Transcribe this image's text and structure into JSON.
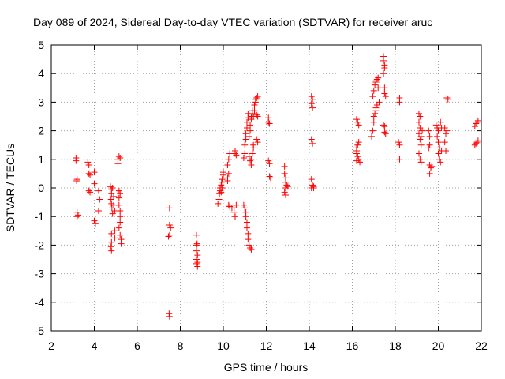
{
  "chart_data": {
    "type": "scatter",
    "title": "Day 089 of 2024, Sidereal Day-to-day VTEC variation (SDTVAR) for receiver aruc",
    "xlabel": "GPS time / hours",
    "ylabel": "SDTVAR / TECUs",
    "xlim": [
      2,
      22
    ],
    "ylim": [
      -5,
      5
    ],
    "x_ticks": [
      2,
      4,
      6,
      8,
      10,
      12,
      14,
      16,
      18,
      20,
      22
    ],
    "y_ticks": [
      -5,
      -4,
      -3,
      -2,
      -1,
      0,
      1,
      2,
      3,
      4,
      5
    ],
    "grid": true,
    "marker": "+",
    "color": "#ff0000",
    "series": [
      {
        "name": "SDTVAR",
        "points": [
          [
            3.15,
            1.05
          ],
          [
            3.15,
            0.95
          ],
          [
            3.2,
            0.3
          ],
          [
            3.18,
            0.25
          ],
          [
            3.2,
            -0.85
          ],
          [
            3.2,
            -1.0
          ],
          [
            3.25,
            -0.95
          ],
          [
            3.7,
            0.9
          ],
          [
            3.75,
            0.8
          ],
          [
            3.75,
            0.5
          ],
          [
            3.8,
            0.45
          ],
          [
            3.75,
            -0.1
          ],
          [
            3.8,
            -0.15
          ],
          [
            4.0,
            0.55
          ],
          [
            4.0,
            0.15
          ],
          [
            4.0,
            -1.15
          ],
          [
            4.05,
            -1.25
          ],
          [
            4.2,
            -0.1
          ],
          [
            4.25,
            -0.4
          ],
          [
            4.2,
            -0.8
          ],
          [
            4.75,
            0.05
          ],
          [
            4.8,
            -0.05
          ],
          [
            4.8,
            -0.2
          ],
          [
            4.78,
            -0.4
          ],
          [
            4.8,
            -0.55
          ],
          [
            4.82,
            -0.7
          ],
          [
            4.85,
            -0.9
          ],
          [
            4.8,
            -1.6
          ],
          [
            4.8,
            -1.9
          ],
          [
            4.78,
            -2.05
          ],
          [
            4.8,
            -2.2
          ],
          [
            4.85,
            0.0
          ],
          [
            4.9,
            -0.3
          ],
          [
            4.9,
            -0.6
          ],
          [
            4.95,
            -0.8
          ],
          [
            4.95,
            -1.5
          ],
          [
            4.95,
            -1.75
          ],
          [
            5.1,
            0.85
          ],
          [
            5.1,
            1.0
          ],
          [
            5.15,
            1.1
          ],
          [
            5.2,
            1.05
          ],
          [
            5.15,
            -0.1
          ],
          [
            5.15,
            -0.35
          ],
          [
            5.15,
            -0.6
          ],
          [
            5.2,
            -0.8
          ],
          [
            5.2,
            -1.0
          ],
          [
            5.2,
            -1.2
          ],
          [
            5.15,
            -1.4
          ],
          [
            5.2,
            -1.65
          ],
          [
            5.25,
            -1.8
          ],
          [
            5.25,
            -1.95
          ],
          [
            5.2,
            -0.2
          ],
          [
            7.5,
            -0.7
          ],
          [
            7.5,
            -1.3
          ],
          [
            7.55,
            -1.4
          ],
          [
            7.5,
            -1.65
          ],
          [
            7.45,
            -1.7
          ],
          [
            7.48,
            -4.4
          ],
          [
            7.5,
            -4.5
          ],
          [
            8.75,
            -1.65
          ],
          [
            8.78,
            -1.95
          ],
          [
            8.75,
            -2.0
          ],
          [
            8.75,
            -2.2
          ],
          [
            8.8,
            -2.35
          ],
          [
            8.75,
            -2.5
          ],
          [
            8.8,
            -2.6
          ],
          [
            8.75,
            -2.65
          ],
          [
            8.8,
            -2.75
          ],
          [
            9.75,
            -0.55
          ],
          [
            9.8,
            -0.4
          ],
          [
            9.82,
            -0.2
          ],
          [
            9.85,
            -0.1
          ],
          [
            9.85,
            0.0
          ],
          [
            9.9,
            0.1
          ],
          [
            9.92,
            0.2
          ],
          [
            9.95,
            0.3
          ],
          [
            10.0,
            0.45
          ],
          [
            10.0,
            0.55
          ],
          [
            9.95,
            0.0
          ],
          [
            9.9,
            -0.15
          ],
          [
            10.2,
            0.35
          ],
          [
            10.25,
            0.5
          ],
          [
            10.2,
            0.8
          ],
          [
            10.25,
            1.0
          ],
          [
            10.3,
            1.2
          ],
          [
            10.2,
            0.25
          ],
          [
            10.25,
            -0.6
          ],
          [
            10.3,
            -0.65
          ],
          [
            10.4,
            -0.7
          ],
          [
            10.5,
            -0.7
          ],
          [
            10.5,
            -0.85
          ],
          [
            10.55,
            -1.0
          ],
          [
            10.55,
            1.2
          ],
          [
            10.55,
            1.3
          ],
          [
            10.6,
            1.15
          ],
          [
            10.6,
            -0.6
          ],
          [
            10.95,
            -0.6
          ],
          [
            11.0,
            -0.7
          ],
          [
            11.05,
            -0.85
          ],
          [
            11.05,
            -1.0
          ],
          [
            11.1,
            -1.2
          ],
          [
            11.1,
            -1.4
          ],
          [
            11.15,
            -1.6
          ],
          [
            11.15,
            -1.8
          ],
          [
            11.2,
            -2.0
          ],
          [
            11.25,
            -2.1
          ],
          [
            11.3,
            -2.15
          ],
          [
            10.95,
            1.05
          ],
          [
            11.0,
            1.2
          ],
          [
            11.0,
            1.5
          ],
          [
            11.05,
            1.7
          ],
          [
            11.05,
            1.9
          ],
          [
            11.1,
            2.1
          ],
          [
            11.1,
            2.3
          ],
          [
            11.15,
            2.45
          ],
          [
            11.15,
            2.6
          ],
          [
            11.2,
            1.8
          ],
          [
            11.25,
            2.0
          ],
          [
            11.25,
            2.2
          ],
          [
            11.3,
            2.4
          ],
          [
            11.3,
            2.5
          ],
          [
            11.35,
            2.6
          ],
          [
            11.35,
            2.7
          ],
          [
            11.2,
            1.1
          ],
          [
            11.25,
            0.95
          ],
          [
            11.3,
            0.8
          ],
          [
            11.3,
            1.0
          ],
          [
            11.35,
            1.2
          ],
          [
            11.4,
            1.4
          ],
          [
            11.4,
            1.5
          ],
          [
            11.4,
            2.5
          ],
          [
            11.45,
            2.7
          ],
          [
            11.45,
            2.9
          ],
          [
            11.5,
            3.0
          ],
          [
            11.5,
            3.1
          ],
          [
            11.55,
            3.15
          ],
          [
            11.6,
            3.2
          ],
          [
            11.55,
            2.55
          ],
          [
            11.6,
            2.5
          ],
          [
            11.55,
            1.7
          ],
          [
            11.6,
            1.6
          ],
          [
            12.1,
            2.45
          ],
          [
            12.1,
            2.3
          ],
          [
            12.15,
            2.25
          ],
          [
            12.1,
            0.95
          ],
          [
            12.15,
            0.85
          ],
          [
            12.15,
            0.4
          ],
          [
            12.2,
            0.35
          ],
          [
            12.85,
            0.75
          ],
          [
            12.85,
            0.5
          ],
          [
            12.9,
            0.35
          ],
          [
            12.9,
            0.2
          ],
          [
            12.95,
            0.1
          ],
          [
            12.9,
            0.0
          ],
          [
            12.85,
            -0.15
          ],
          [
            12.9,
            -0.25
          ],
          [
            13.0,
            0.05
          ],
          [
            14.1,
            3.2
          ],
          [
            14.15,
            3.1
          ],
          [
            14.1,
            2.95
          ],
          [
            14.15,
            2.8
          ],
          [
            14.1,
            1.7
          ],
          [
            14.15,
            1.55
          ],
          [
            14.1,
            0.3
          ],
          [
            14.15,
            0.1
          ],
          [
            14.2,
            0.05
          ],
          [
            14.1,
            0.0
          ],
          [
            14.2,
            0.0
          ],
          [
            16.2,
            2.4
          ],
          [
            16.25,
            2.3
          ],
          [
            16.3,
            2.2
          ],
          [
            16.2,
            1.4
          ],
          [
            16.25,
            1.5
          ],
          [
            16.3,
            1.6
          ],
          [
            16.2,
            1.2
          ],
          [
            16.25,
            1.1
          ],
          [
            16.3,
            1.0
          ],
          [
            16.35,
            0.9
          ],
          [
            16.2,
            0.95
          ],
          [
            16.2,
            1.3
          ],
          [
            16.9,
            1.8
          ],
          [
            16.95,
            2.0
          ],
          [
            17.0,
            2.3
          ],
          [
            17.0,
            2.5
          ],
          [
            17.05,
            2.6
          ],
          [
            17.1,
            2.7
          ],
          [
            17.1,
            2.8
          ],
          [
            17.15,
            2.9
          ],
          [
            16.95,
            3.2
          ],
          [
            17.0,
            3.4
          ],
          [
            17.05,
            3.6
          ],
          [
            17.1,
            3.7
          ],
          [
            17.1,
            3.75
          ],
          [
            17.15,
            3.8
          ],
          [
            17.2,
            3.85
          ],
          [
            17.2,
            3.5
          ],
          [
            17.25,
            3.0
          ],
          [
            17.45,
            4.6
          ],
          [
            17.45,
            4.45
          ],
          [
            17.5,
            4.3
          ],
          [
            17.5,
            4.2
          ],
          [
            17.45,
            4.0
          ],
          [
            17.5,
            3.5
          ],
          [
            17.5,
            3.3
          ],
          [
            17.55,
            3.2
          ],
          [
            17.45,
            2.2
          ],
          [
            17.5,
            2.15
          ],
          [
            17.5,
            1.95
          ],
          [
            17.55,
            1.9
          ],
          [
            18.2,
            3.15
          ],
          [
            18.2,
            3.0
          ],
          [
            18.15,
            1.6
          ],
          [
            18.2,
            1.5
          ],
          [
            18.2,
            1.0
          ],
          [
            19.1,
            2.6
          ],
          [
            19.15,
            2.5
          ],
          [
            19.1,
            2.3
          ],
          [
            19.15,
            2.1
          ],
          [
            19.1,
            1.9
          ],
          [
            19.15,
            1.7
          ],
          [
            19.2,
            1.5
          ],
          [
            19.1,
            1.2
          ],
          [
            19.15,
            1.0
          ],
          [
            19.2,
            0.9
          ],
          [
            19.25,
            2.0
          ],
          [
            19.2,
            1.8
          ],
          [
            19.55,
            2.0
          ],
          [
            19.6,
            1.8
          ],
          [
            19.6,
            1.5
          ],
          [
            19.55,
            1.4
          ],
          [
            19.6,
            0.8
          ],
          [
            19.65,
            0.7
          ],
          [
            19.6,
            0.5
          ],
          [
            19.7,
            0.75
          ],
          [
            19.9,
            2.2
          ],
          [
            19.95,
            2.1
          ],
          [
            20.0,
            2.0
          ],
          [
            19.95,
            1.8
          ],
          [
            20.0,
            1.6
          ],
          [
            20.05,
            1.4
          ],
          [
            20.0,
            1.2
          ],
          [
            20.05,
            1.0
          ],
          [
            20.1,
            0.9
          ],
          [
            20.1,
            2.3
          ],
          [
            20.15,
            2.1
          ],
          [
            20.15,
            1.3
          ],
          [
            20.3,
            2.1
          ],
          [
            20.35,
            1.9
          ],
          [
            20.3,
            1.6
          ],
          [
            20.35,
            1.3
          ],
          [
            20.4,
            3.15
          ],
          [
            20.45,
            3.1
          ],
          [
            20.4,
            2.0
          ],
          [
            21.7,
            2.15
          ],
          [
            21.75,
            2.25
          ],
          [
            21.8,
            2.3
          ],
          [
            21.85,
            2.35
          ],
          [
            21.7,
            1.5
          ],
          [
            21.75,
            1.55
          ],
          [
            21.8,
            1.6
          ],
          [
            21.85,
            1.65
          ]
        ]
      }
    ]
  }
}
